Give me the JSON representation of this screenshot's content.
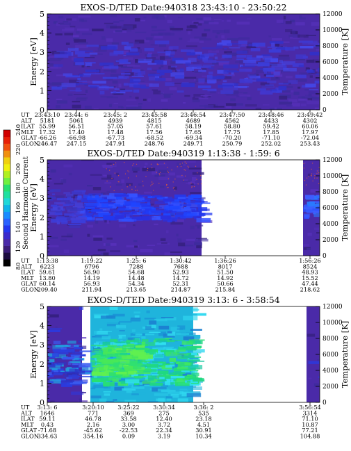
{
  "colorbar": {
    "label": "Second Harmonic Current",
    "ticks": [
      "80",
      "120",
      "140",
      "160",
      "180",
      "200",
      "220",
      "240"
    ]
  },
  "colors": {
    "background_fill": "#4a2aa8",
    "noise_dark": "#35207e",
    "band_blue": "#2238f0",
    "band_light": "#3f5cff",
    "teal": "#18b8d8",
    "cyan": "#30e0f0",
    "green": "#28e070",
    "dots": "#c05050"
  },
  "row_labels": [
    "UT",
    "ALT",
    "ILAT",
    "MLT",
    "GLAT",
    "GLON"
  ],
  "chart_data": [
    {
      "type": "heatmap",
      "title": "EXOS-D/TED   Date:940318   23:43:10 - 23:50:22",
      "ylabel": "Energy [eV]",
      "y2label": "Temperature [K]",
      "ylim": [
        0,
        5
      ],
      "y2lim": [
        0,
        12000
      ],
      "yticks": [
        "0",
        "1",
        "2",
        "3",
        "4",
        "5"
      ],
      "y2ticks": [
        "0",
        "2000",
        "4000",
        "6000",
        "8000",
        "10000",
        "12000"
      ],
      "columns": [
        {
          "UT": "23:43:10",
          "ALT": "5181",
          "ILAT": "55.99",
          "MLT": "17.32",
          "GLAT": "-66.26",
          "GLON": "246.47"
        },
        {
          "UT": "23:44: 6",
          "ALT": "5061",
          "ILAT": "56.51",
          "MLT": "17.40",
          "GLAT": "-66.98",
          "GLON": "247.15"
        },
        {
          "UT": "23:45: 2",
          "ALT": "4939",
          "ILAT": "57.05",
          "MLT": "17.48",
          "GLAT": "-67.73",
          "GLON": "247.91"
        },
        {
          "UT": "23:45:58",
          "ALT": "4815",
          "ILAT": "57.61",
          "MLT": "17.56",
          "GLAT": "-68.52",
          "GLON": "248.76"
        },
        {
          "UT": "23:46:54",
          "ALT": "4689",
          "ILAT": "58.19",
          "MLT": "17.65",
          "GLAT": "-69.34",
          "GLON": "249.71"
        },
        {
          "UT": "23:47:50",
          "ALT": "4562",
          "ILAT": "58.80",
          "MLT": "17.75",
          "GLAT": "-70.20",
          "GLON": "250.79"
        },
        {
          "UT": "23:48:46",
          "ALT": "4433",
          "ILAT": "59.42",
          "MLT": "17.85",
          "GLAT": "-71.10",
          "GLON": "252.02"
        },
        {
          "UT": "23:49:42",
          "ALT": "4302",
          "ILAT": "60.06",
          "MLT": "17.97",
          "GLAT": "-72.04",
          "GLON": "253.43"
        }
      ]
    },
    {
      "type": "heatmap",
      "title": "EXOS-D/TED   Date:940319   1:13:38 - 1:59: 6",
      "ylabel": "Energy [eV]",
      "y2label": "Temperature [K]",
      "ylim": [
        0,
        5
      ],
      "y2lim": [
        0,
        12000
      ],
      "yticks": [
        "0",
        "1",
        "2",
        "3",
        "4",
        "5"
      ],
      "y2ticks": [
        "0",
        "2000",
        "4000",
        "6000",
        "8000",
        "10000",
        "12000"
      ],
      "columns": [
        {
          "UT": "1:13:38",
          "ALT": "6223",
          "ILAT": "59.61",
          "MLT": "13.80",
          "GLAT": "60.14",
          "GLON": "209.40"
        },
        {
          "UT": "1:19:22",
          "ALT": "6796",
          "ILAT": "56.90",
          "MLT": "14.19",
          "GLAT": "56.93",
          "GLON": "211.94"
        },
        {
          "UT": "1:25: 6",
          "ALT": "7288",
          "ILAT": "54.68",
          "MLT": "14.48",
          "GLAT": "54.34",
          "GLON": "213.65"
        },
        {
          "UT": "1:30:42",
          "ALT": "7688",
          "ILAT": "52.93",
          "MLT": "14.72",
          "GLAT": "52.31",
          "GLON": "214.87"
        },
        {
          "UT": "1:36:26",
          "ALT": "8017",
          "ILAT": "51.50",
          "MLT": "14.92",
          "GLAT": "50.66",
          "GLON": "215.84"
        },
        {
          "UT": "1:56:26",
          "ALT": "8524",
          "ILAT": "48.93",
          "MLT": "15.52",
          "GLAT": "47.44",
          "GLON": "218.62"
        }
      ]
    },
    {
      "type": "heatmap",
      "title": "EXOS-D/TED   Date:940319   3:13: 6 - 3:58:54",
      "ylabel": "Energy [eV]",
      "y2label": "Temperature [K]",
      "ylim": [
        0,
        5
      ],
      "y2lim": [
        0,
        12000
      ],
      "yticks": [
        "0",
        "1",
        "2",
        "3",
        "4",
        "5"
      ],
      "y2ticks": [
        "0",
        "2000",
        "4000",
        "6000",
        "8000",
        "10000",
        "12000"
      ],
      "columns": [
        {
          "UT": "3:13: 6",
          "ALT": "1646",
          "ILAT": "59.11",
          "MLT": "0.43",
          "GLAT": "-71.68",
          "GLON": "334.63"
        },
        {
          "UT": "3:20:10",
          "ALT": "771",
          "ILAT": "46.78",
          "MLT": "2.16",
          "GLAT": "-45.62",
          "GLON": "354.16"
        },
        {
          "UT": "3:25:22",
          "ALT": "369",
          "ILAT": "33.58",
          "MLT": "3.00",
          "GLAT": "-22.53",
          "GLON": "0.09"
        },
        {
          "UT": "3:30:34",
          "ALT": "275",
          "ILAT": "12.40",
          "MLT": "3.72",
          "GLAT": "22.34",
          "GLON": "3.19"
        },
        {
          "UT": "3:36: 2",
          "ALT": "535",
          "ILAT": "23.18",
          "MLT": "4.51",
          "GLAT": "30.91",
          "GLON": "10.34"
        },
        {
          "UT": "3:56:54",
          "ALT": "3314",
          "ILAT": "71.10",
          "MLT": "10.87",
          "GLAT": "77.21",
          "GLON": "104.88"
        }
      ]
    }
  ]
}
